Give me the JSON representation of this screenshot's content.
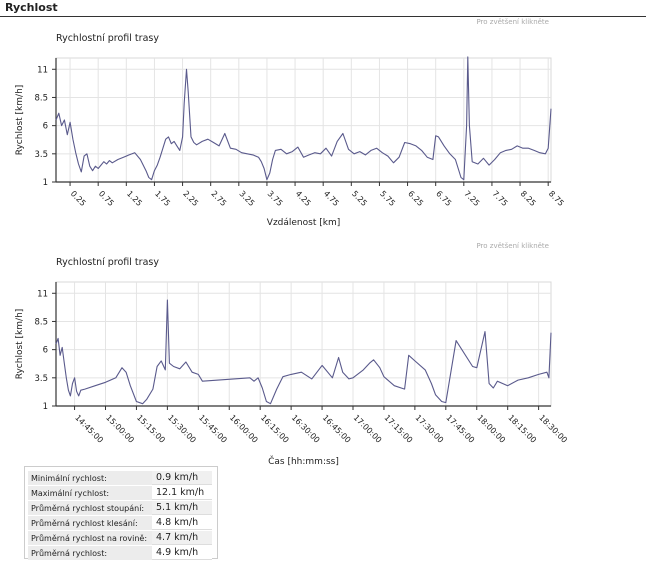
{
  "section": {
    "title": "Rychlost"
  },
  "charts": [
    {
      "zoom_hint": "Pro zvětšení klikněte",
      "title": "Rychlostní profil trasy",
      "xlabel": "Vzdálenost [km]",
      "ylabel": "Rychlost [km/h]",
      "yticks": [
        "1",
        "3.5",
        "6",
        "8.5",
        "11"
      ],
      "xticks": [
        "0.25",
        "0.75",
        "1.25",
        "1.75",
        "2.25",
        "2.75",
        "3.25",
        "3.75",
        "4.25",
        "4.75",
        "5.25",
        "5.75",
        "6.25",
        "6.75",
        "7.25",
        "7.75",
        "8.25",
        "8.75"
      ]
    },
    {
      "zoom_hint": "Pro zvětšení klikněte",
      "title": "Rychlostní profil trasy",
      "xlabel": "Čas  [hh:mm:ss]",
      "ylabel": "Rychlost [km/h]",
      "yticks": [
        "1",
        "3.5",
        "6",
        "8.5",
        "11"
      ],
      "xticks": [
        "14:45:00",
        "15:00:00",
        "15:15:00",
        "15:30:00",
        "15:45:00",
        "16:00:00",
        "16:15:00",
        "16:30:00",
        "16:45:00",
        "17:00:00",
        "17:15:00",
        "17:30:00",
        "17:45:00",
        "18:00:00",
        "18:15:00",
        "18:30:00"
      ]
    }
  ],
  "chart_data": [
    {
      "type": "line",
      "title": "Rychlostní profil trasy",
      "xlabel": "Vzdálenost [km]",
      "ylabel": "Rychlost [km/h]",
      "xlim": [
        0,
        8.8
      ],
      "ylim": [
        1,
        12
      ],
      "grid": true,
      "series": [
        {
          "x": [
            0,
            0.05,
            0.1,
            0.15,
            0.2,
            0.25,
            0.3,
            0.35,
            0.4,
            0.45,
            0.5,
            0.55,
            0.6,
            0.65,
            0.7,
            0.75,
            0.8,
            0.85,
            0.9,
            0.95,
            1.0,
            1.1,
            1.2,
            1.3,
            1.4,
            1.5,
            1.55,
            1.6,
            1.65,
            1.7,
            1.75,
            1.8,
            1.85,
            1.9,
            1.95,
            2.0,
            2.05,
            2.1,
            2.15,
            2.2,
            2.25,
            2.28,
            2.32,
            2.35,
            2.4,
            2.45,
            2.5,
            2.6,
            2.7,
            2.8,
            2.9,
            3.0,
            3.1,
            3.2,
            3.3,
            3.4,
            3.5,
            3.6,
            3.65,
            3.7,
            3.75,
            3.8,
            3.85,
            3.9,
            4.0,
            4.1,
            4.2,
            4.3,
            4.4,
            4.5,
            4.6,
            4.7,
            4.8,
            4.9,
            5.0,
            5.1,
            5.2,
            5.3,
            5.4,
            5.5,
            5.6,
            5.7,
            5.8,
            5.9,
            6.0,
            6.1,
            6.2,
            6.3,
            6.4,
            6.5,
            6.6,
            6.7,
            6.75,
            6.8,
            6.9,
            7.0,
            7.1,
            7.15,
            7.2,
            7.25,
            7.3,
            7.32,
            7.35,
            7.4,
            7.5,
            7.6,
            7.7,
            7.8,
            7.9,
            8.0,
            8.1,
            8.2,
            8.3,
            8.4,
            8.5,
            8.6,
            8.7,
            8.75,
            8.8
          ],
          "values": [
            6.5,
            7.1,
            6.0,
            6.5,
            5.2,
            6.3,
            4.8,
            3.6,
            2.6,
            1.9,
            3.3,
            3.5,
            2.4,
            2.0,
            2.4,
            2.2,
            2.5,
            2.8,
            2.6,
            2.9,
            2.7,
            3.0,
            3.2,
            3.4,
            3.6,
            3.0,
            2.5,
            2.0,
            1.4,
            1.2,
            2.0,
            2.5,
            3.2,
            4.0,
            4.8,
            5.0,
            4.4,
            4.6,
            4.2,
            3.8,
            5.0,
            8.0,
            11.0,
            9.0,
            5.0,
            4.5,
            4.3,
            4.6,
            4.8,
            4.5,
            4.2,
            5.3,
            4.0,
            3.9,
            3.6,
            3.5,
            3.4,
            3.2,
            2.8,
            2.2,
            1.2,
            1.8,
            3.0,
            3.8,
            3.9,
            3.5,
            3.7,
            4.1,
            3.2,
            3.4,
            3.6,
            3.5,
            4.0,
            3.3,
            4.6,
            5.3,
            3.9,
            3.5,
            3.7,
            3.4,
            3.8,
            4.0,
            3.6,
            3.3,
            2.7,
            3.2,
            4.5,
            4.4,
            4.2,
            3.8,
            3.2,
            3.0,
            5.1,
            5.0,
            4.2,
            3.5,
            3.0,
            2.2,
            1.4,
            1.2,
            6.0,
            12.1,
            6.0,
            2.8,
            2.6,
            3.1,
            2.5,
            3.0,
            3.6,
            3.8,
            3.9,
            4.2,
            4.0,
            4.0,
            3.8,
            3.6,
            3.5,
            4.0,
            7.5
          ]
        }
      ]
    },
    {
      "type": "line",
      "title": "Rychlostní profil trasy",
      "xlabel": "Čas  [hh:mm:ss]",
      "ylabel": "Rychlost [km/h]",
      "xlim": [
        "14:36:00",
        "18:36:00"
      ],
      "ylim": [
        1,
        12
      ],
      "grid": true,
      "series": [
        {
          "x": [
            "14:36:00",
            "14:37:00",
            "14:38:00",
            "14:39:00",
            "14:40:00",
            "14:41:00",
            "14:42:00",
            "14:43:00",
            "14:44:00",
            "14:45:00",
            "14:46:00",
            "14:47:00",
            "14:48:00",
            "14:50:00",
            "14:55:00",
            "15:00:00",
            "15:05:00",
            "15:08:00",
            "15:10:00",
            "15:12:00",
            "15:15:00",
            "15:18:00",
            "15:20:00",
            "15:23:00",
            "15:25:00",
            "15:27:00",
            "15:29:00",
            "15:30:00",
            "15:31:00",
            "15:33:00",
            "15:36:00",
            "15:39:00",
            "15:42:00",
            "15:45:00",
            "15:47:00",
            "16:10:00",
            "16:12:00",
            "16:14:00",
            "16:16:00",
            "16:18:00",
            "16:20:00",
            "16:23:00",
            "16:26:00",
            "16:30:00",
            "16:35:00",
            "16:40:00",
            "16:45:00",
            "16:50:00",
            "16:53:00",
            "16:55:00",
            "16:58:00",
            "17:00:00",
            "17:05:00",
            "17:08:00",
            "17:10:00",
            "17:13:00",
            "17:15:00",
            "17:20:00",
            "17:25:00",
            "17:27:00",
            "17:30:00",
            "17:35:00",
            "17:38:00",
            "17:40:00",
            "17:43:00",
            "17:45:00",
            "17:50:00",
            "17:58:00",
            "18:00:00",
            "18:02:00",
            "18:04:00",
            "18:06:00",
            "18:08:00",
            "18:10:00",
            "18:15:00",
            "18:20:00",
            "18:25:00",
            "18:30:00",
            "18:34:00",
            "18:35:00",
            "18:36:00"
          ],
          "values": [
            6.5,
            7.0,
            5.5,
            6.2,
            4.8,
            3.5,
            2.4,
            1.9,
            3.0,
            3.5,
            2.3,
            1.9,
            2.4,
            2.5,
            2.8,
            3.1,
            3.5,
            4.4,
            4.0,
            2.8,
            1.4,
            1.2,
            1.6,
            2.5,
            4.5,
            5.0,
            4.2,
            10.4,
            4.8,
            4.5,
            4.3,
            4.9,
            4.0,
            3.8,
            3.2,
            3.5,
            3.2,
            3.5,
            2.6,
            1.4,
            1.2,
            2.5,
            3.6,
            3.8,
            4.0,
            3.4,
            4.6,
            3.5,
            5.3,
            4.0,
            3.4,
            3.5,
            4.2,
            4.8,
            5.1,
            4.4,
            3.6,
            2.8,
            2.5,
            5.5,
            5.0,
            4.2,
            3.0,
            2.0,
            1.4,
            1.3,
            6.8,
            4.5,
            4.4,
            6.0,
            7.6,
            3.0,
            2.6,
            3.2,
            2.8,
            3.3,
            3.5,
            3.8,
            4.0,
            3.5,
            7.5
          ]
        }
      ]
    }
  ],
  "stats": [
    {
      "label": "Minimální rychlost:",
      "value": "0.9 km/h"
    },
    {
      "label": "Maximální rychlost:",
      "value": "12.1 km/h"
    },
    {
      "label": "Průměrná rychlost stoupání:",
      "value": "5.1 km/h"
    },
    {
      "label": "Průměrná rychlost klesání:",
      "value": "4.8 km/h"
    },
    {
      "label": "Průměrná rychlost na rovině:",
      "value": "4.7 km/h"
    },
    {
      "label": "Průměrná rychlost:",
      "value": "4.9 km/h"
    }
  ],
  "colors": {
    "line": "#5a5a8c",
    "grid": "#e4e4e4",
    "axis": "#333333"
  }
}
